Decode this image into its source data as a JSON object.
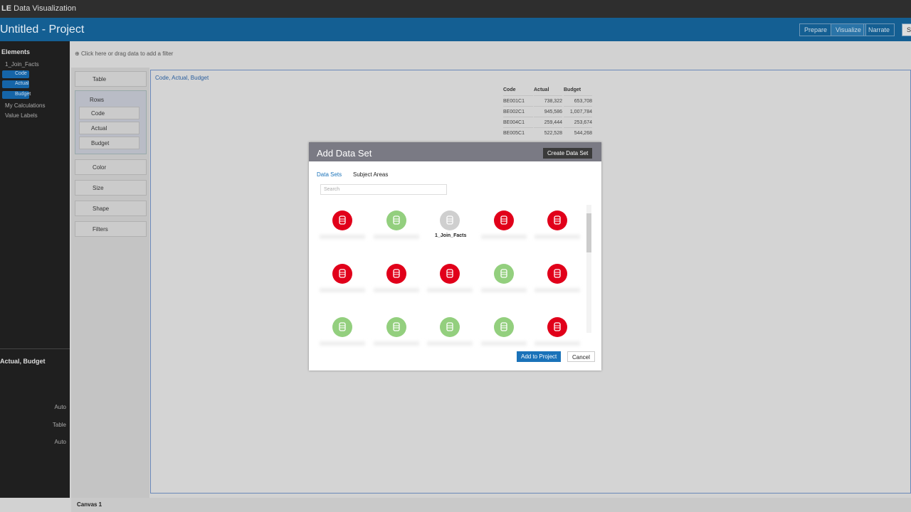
{
  "header": {
    "brand": "LE",
    "app": "Data Visualization",
    "project": "Untitled - Project",
    "modes": [
      "Prepare",
      "Visualize",
      "Narrate",
      "S"
    ]
  },
  "elements": {
    "title": "Elements",
    "source": "1_Join_Facts",
    "columns": [
      "Code",
      "Actual",
      "Budget"
    ],
    "groups": [
      "My Calculations",
      "Value Labels"
    ]
  },
  "filter_bar": "Click here or drag data to add a filter",
  "grammar": {
    "viz_type": "Table",
    "rows_label": "Rows",
    "rows": [
      "Code",
      "Actual",
      "Budget"
    ],
    "sections": [
      "Color",
      "Size",
      "Shape",
      "Filters"
    ]
  },
  "properties": {
    "title": "Actual, Budget",
    "values": [
      "Auto",
      "Table",
      "Auto"
    ]
  },
  "canvas": {
    "viz_title": "Code, Actual, Budget",
    "table": {
      "header": [
        "Code",
        "Actual",
        "Budget"
      ],
      "rows": [
        [
          "BE001C1",
          "738,322",
          "653,708"
        ],
        [
          "BE002C1",
          "945,586",
          "1,007,784"
        ],
        [
          "BE004C1",
          "259,444",
          "253,674"
        ],
        [
          "BE005C1",
          "522,528",
          "544,268"
        ]
      ]
    },
    "tab": "Canvas 1"
  },
  "dialog": {
    "title": "Add Data Set",
    "create": "Create Data Set",
    "tabs": [
      "Data Sets",
      "Subject Areas"
    ],
    "search": "Search",
    "tile_label": "1_Join_Facts",
    "ok": "Add to Project",
    "cancel": "Cancel"
  }
}
